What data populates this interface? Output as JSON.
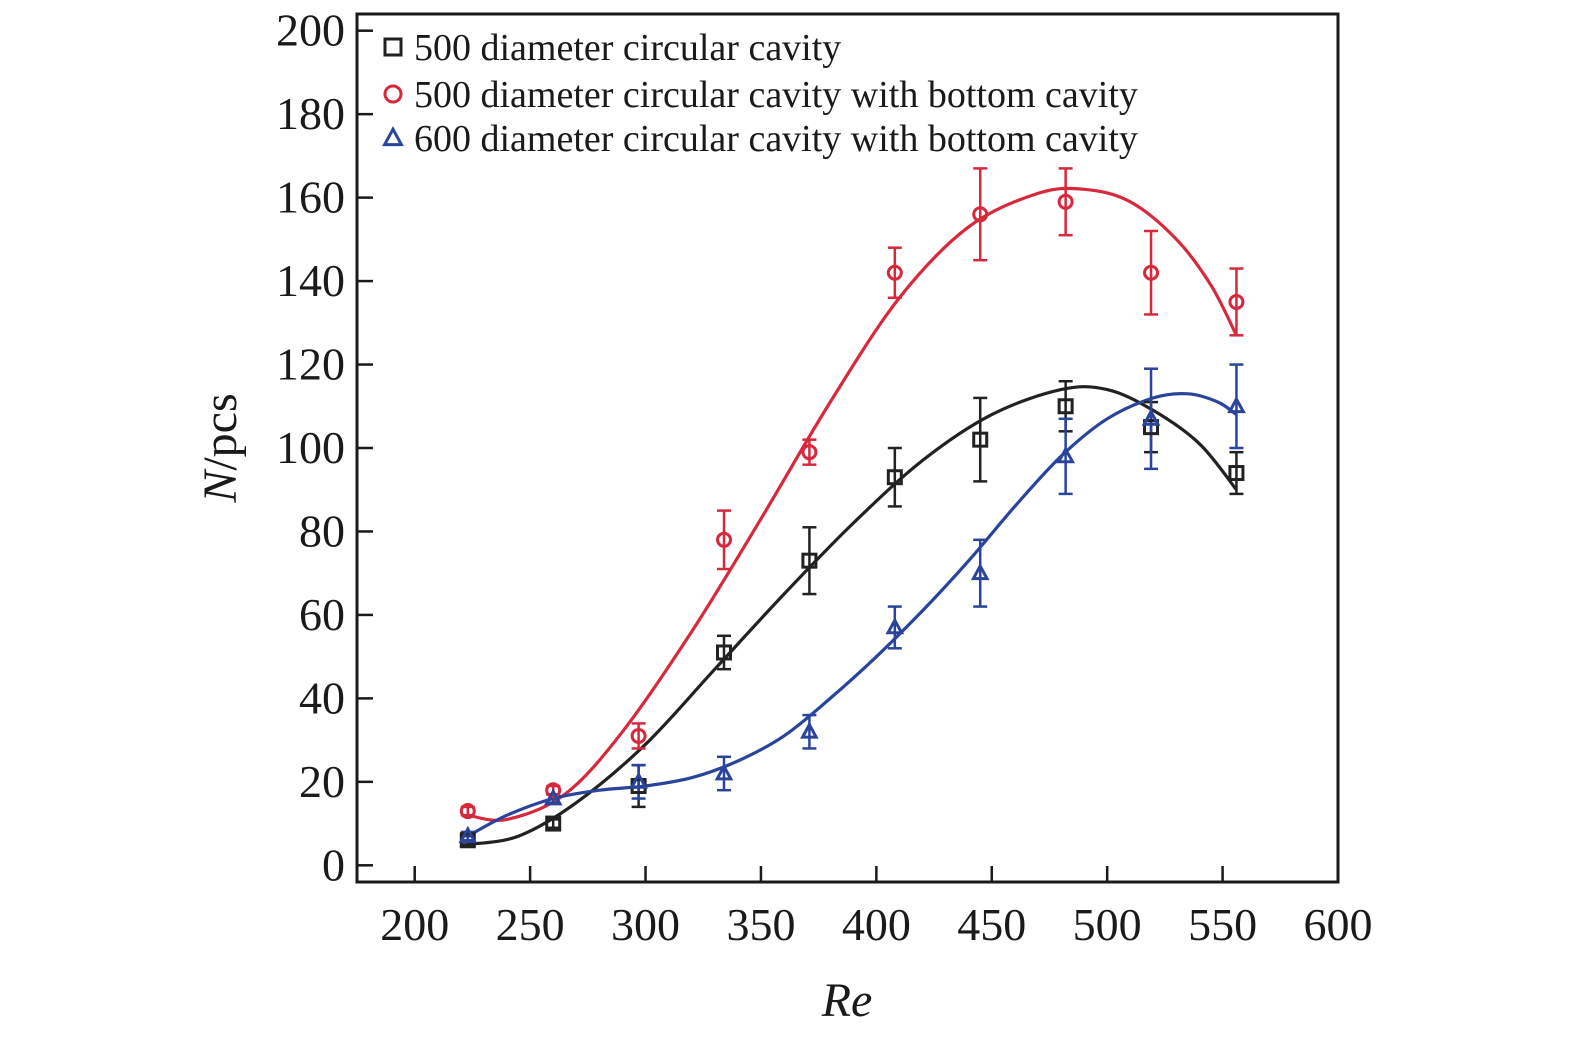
{
  "chart_data": {
    "type": "scatter",
    "xlabel": "Re",
    "ylabel": {
      "italic": "N",
      "rest": "/pcs"
    },
    "xlim": [
      175,
      600
    ],
    "ylim": [
      -4,
      204
    ],
    "xticks": [
      200,
      250,
      300,
      350,
      400,
      450,
      500,
      550,
      600
    ],
    "yticks": [
      0,
      20,
      40,
      60,
      80,
      100,
      120,
      140,
      160,
      180,
      200
    ],
    "grid": false,
    "legend_position": "top-left",
    "series": [
      {
        "name": "500 diameter circular cavity",
        "marker": "square",
        "color": "#222222",
        "x": [
          223,
          260,
          297,
          334,
          371,
          408,
          445,
          482,
          519,
          556
        ],
        "y": [
          6,
          10,
          19,
          51,
          73,
          93,
          102,
          110,
          105,
          94
        ],
        "err": [
          1,
          1,
          5,
          4,
          8,
          7,
          10,
          6,
          6,
          5
        ],
        "fit": [
          [
            223,
            5
          ],
          [
            245,
            7
          ],
          [
            270,
            15
          ],
          [
            300,
            29
          ],
          [
            330,
            47
          ],
          [
            360,
            65
          ],
          [
            390,
            82
          ],
          [
            420,
            97
          ],
          [
            450,
            108
          ],
          [
            480,
            114
          ],
          [
            500,
            114
          ],
          [
            520,
            109
          ],
          [
            540,
            101
          ],
          [
            556,
            90
          ]
        ]
      },
      {
        "name": "500 diameter circular cavity with bottom cavity",
        "marker": "circle",
        "color": "#d8283c",
        "x": [
          223,
          260,
          297,
          334,
          371,
          408,
          445,
          482,
          519,
          556
        ],
        "y": [
          13,
          18,
          31,
          78,
          99,
          142,
          156,
          159,
          142,
          135
        ],
        "err": [
          1,
          1,
          3,
          7,
          3,
          6,
          11,
          8,
          10,
          8
        ],
        "fit": [
          [
            223,
            12
          ],
          [
            240,
            11
          ],
          [
            265,
            17
          ],
          [
            290,
            32
          ],
          [
            320,
            56
          ],
          [
            350,
            83
          ],
          [
            380,
            111
          ],
          [
            410,
            136
          ],
          [
            440,
            153
          ],
          [
            470,
            161
          ],
          [
            490,
            162
          ],
          [
            510,
            159
          ],
          [
            530,
            150
          ],
          [
            545,
            139
          ],
          [
            556,
            127
          ]
        ]
      },
      {
        "name": "600 diameter circular cavity with bottom cavity",
        "marker": "triangle",
        "color": "#2a449c",
        "x": [
          223,
          260,
          297,
          334,
          371,
          408,
          445,
          482,
          519,
          556
        ],
        "y": [
          7,
          16,
          20,
          22,
          32,
          57,
          70,
          98,
          107,
          110
        ],
        "err": [
          1,
          1,
          4,
          4,
          4,
          5,
          8,
          9,
          12,
          10
        ],
        "fit": [
          [
            223,
            7
          ],
          [
            240,
            12
          ],
          [
            260,
            16
          ],
          [
            280,
            18
          ],
          [
            300,
            19
          ],
          [
            320,
            21
          ],
          [
            340,
            25
          ],
          [
            360,
            31
          ],
          [
            380,
            40
          ],
          [
            400,
            50
          ],
          [
            420,
            61
          ],
          [
            440,
            73
          ],
          [
            460,
            86
          ],
          [
            480,
            98
          ],
          [
            500,
            107
          ],
          [
            520,
            112
          ],
          [
            535,
            113
          ],
          [
            548,
            111
          ],
          [
            556,
            108
          ]
        ]
      }
    ]
  }
}
